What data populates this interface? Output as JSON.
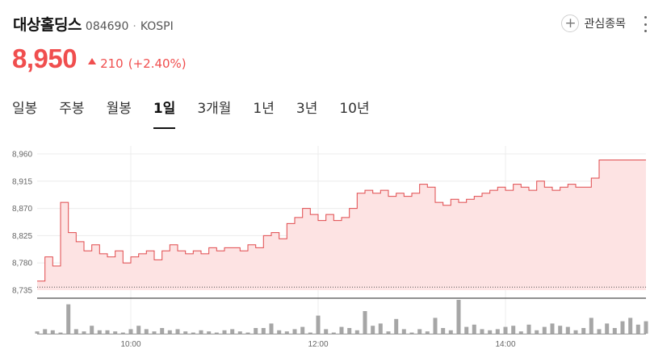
{
  "header": {
    "name": "대상홀딩스",
    "code": "084690",
    "separator": "·",
    "market": "KOSPI"
  },
  "watch": {
    "label": "관심종목"
  },
  "quote": {
    "price": "8,950",
    "change": "210",
    "change_pct": "(+2.40%)"
  },
  "tabs": [
    {
      "label": "일봉"
    },
    {
      "label": "주봉"
    },
    {
      "label": "월봉"
    },
    {
      "label": "1일",
      "active": true
    },
    {
      "label": "3개월"
    },
    {
      "label": "1년"
    },
    {
      "label": "3년"
    },
    {
      "label": "10년"
    }
  ],
  "colors": {
    "up": "#f04e4e",
    "line": "#e0484b",
    "fill": "#fde3e3",
    "volume": "#a6a6a6"
  },
  "chart_data": {
    "type": "area",
    "x_tick_labels": [
      "10:00",
      "12:00",
      "14:00"
    ],
    "y_tick_labels": [
      "8,960",
      "8,915",
      "8,870",
      "8,825",
      "8,780",
      "8,735"
    ],
    "ylim": [
      8735,
      8960
    ],
    "xlim": [
      "09:00",
      "15:30"
    ],
    "grid": true,
    "reference_line": 8740,
    "x": [
      "09:00",
      "09:05",
      "09:10",
      "09:15",
      "09:20",
      "09:25",
      "09:30",
      "09:35",
      "09:40",
      "09:45",
      "09:50",
      "09:55",
      "10:00",
      "10:05",
      "10:10",
      "10:15",
      "10:20",
      "10:25",
      "10:30",
      "10:35",
      "10:40",
      "10:45",
      "10:50",
      "10:55",
      "11:00",
      "11:05",
      "11:10",
      "11:15",
      "11:20",
      "11:25",
      "11:30",
      "11:35",
      "11:40",
      "11:45",
      "11:50",
      "11:55",
      "12:00",
      "12:05",
      "12:10",
      "12:15",
      "12:20",
      "12:25",
      "12:30",
      "12:35",
      "12:40",
      "12:45",
      "12:50",
      "12:55",
      "13:00",
      "13:05",
      "13:10",
      "13:15",
      "13:20",
      "13:25",
      "13:30",
      "13:35",
      "13:40",
      "13:45",
      "13:50",
      "13:55",
      "14:00",
      "14:05",
      "14:10",
      "14:15",
      "14:20",
      "14:25",
      "14:30",
      "14:35",
      "14:40",
      "14:45",
      "14:50",
      "14:55",
      "15:00",
      "15:05",
      "15:10",
      "15:15",
      "15:20",
      "15:25",
      "15:30"
    ],
    "values": [
      8750,
      8790,
      8775,
      8880,
      8830,
      8815,
      8800,
      8810,
      8795,
      8790,
      8800,
      8780,
      8790,
      8795,
      8800,
      8785,
      8800,
      8810,
      8800,
      8795,
      8800,
      8795,
      8805,
      8800,
      8805,
      8805,
      8800,
      8810,
      8805,
      8825,
      8830,
      8820,
      8845,
      8855,
      8870,
      8860,
      8850,
      8860,
      8850,
      8855,
      8870,
      8895,
      8900,
      8895,
      8900,
      8890,
      8895,
      8890,
      8895,
      8910,
      8905,
      8880,
      8875,
      8885,
      8880,
      8885,
      8890,
      8895,
      8900,
      8905,
      8900,
      8910,
      8905,
      8900,
      8915,
      8905,
      8900,
      8905,
      8910,
      8905,
      8905,
      8920,
      8950,
      8950,
      8950,
      8950,
      8950,
      8950,
      8950
    ],
    "volume": [
      2,
      4,
      3,
      1,
      26,
      4,
      2,
      7,
      3,
      3,
      2,
      1,
      4,
      7,
      4,
      2,
      5,
      3,
      4,
      2,
      1,
      3,
      2,
      1,
      3,
      4,
      2,
      1,
      5,
      5,
      9,
      3,
      2,
      4,
      6,
      1,
      16,
      4,
      1,
      6,
      5,
      3,
      20,
      7,
      9,
      2,
      13,
      4,
      1,
      4,
      2,
      14,
      5,
      3,
      30,
      6,
      8,
      4,
      3,
      4,
      6,
      7,
      2,
      8,
      3,
      6,
      9,
      7,
      6,
      3,
      5,
      14,
      4,
      9,
      5,
      11,
      14,
      8,
      11
    ]
  }
}
